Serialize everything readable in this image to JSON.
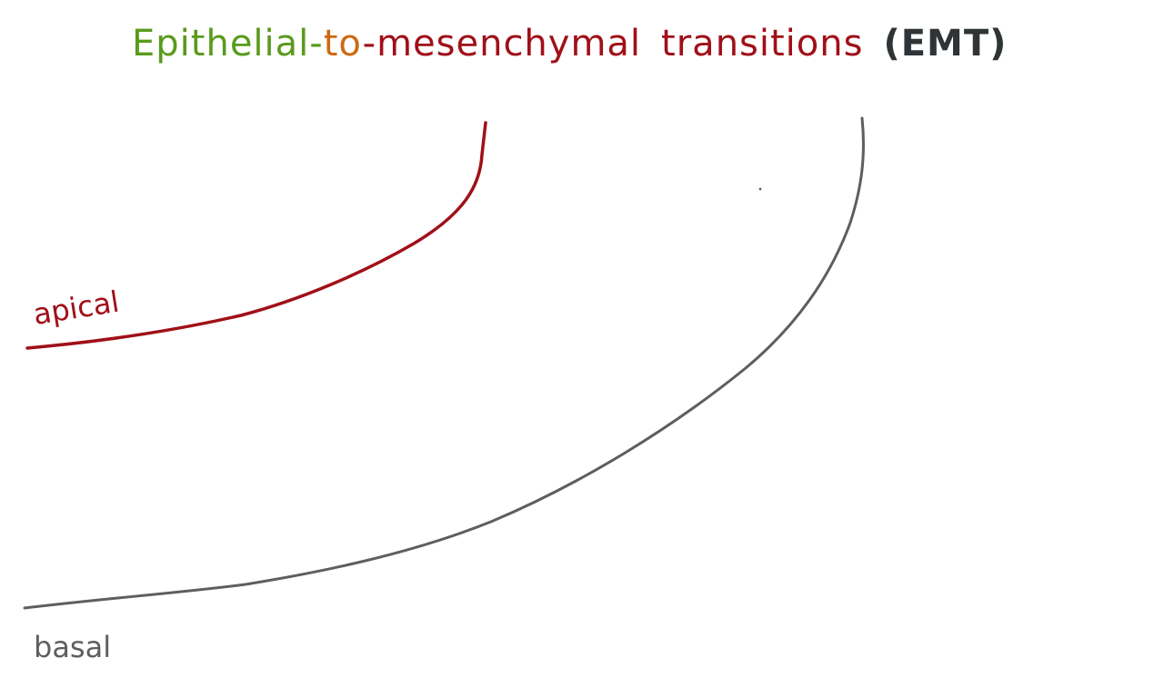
{
  "title": {
    "part_epithelial": "Epithelial",
    "dash_1": "-",
    "part_to": "to",
    "dash_2": "-",
    "part_mesenchymal": "mesenchymal",
    "part_transitions": "transitions",
    "part_abbr": "(EMT)"
  },
  "labels": {
    "apical": "apical",
    "basal": "basal"
  },
  "colors": {
    "green": "#5a9a1e",
    "orange": "#cc6a10",
    "red": "#a01018",
    "dark": "#2f3437",
    "gray": "#5e5e5e",
    "background": "#ffffff"
  }
}
